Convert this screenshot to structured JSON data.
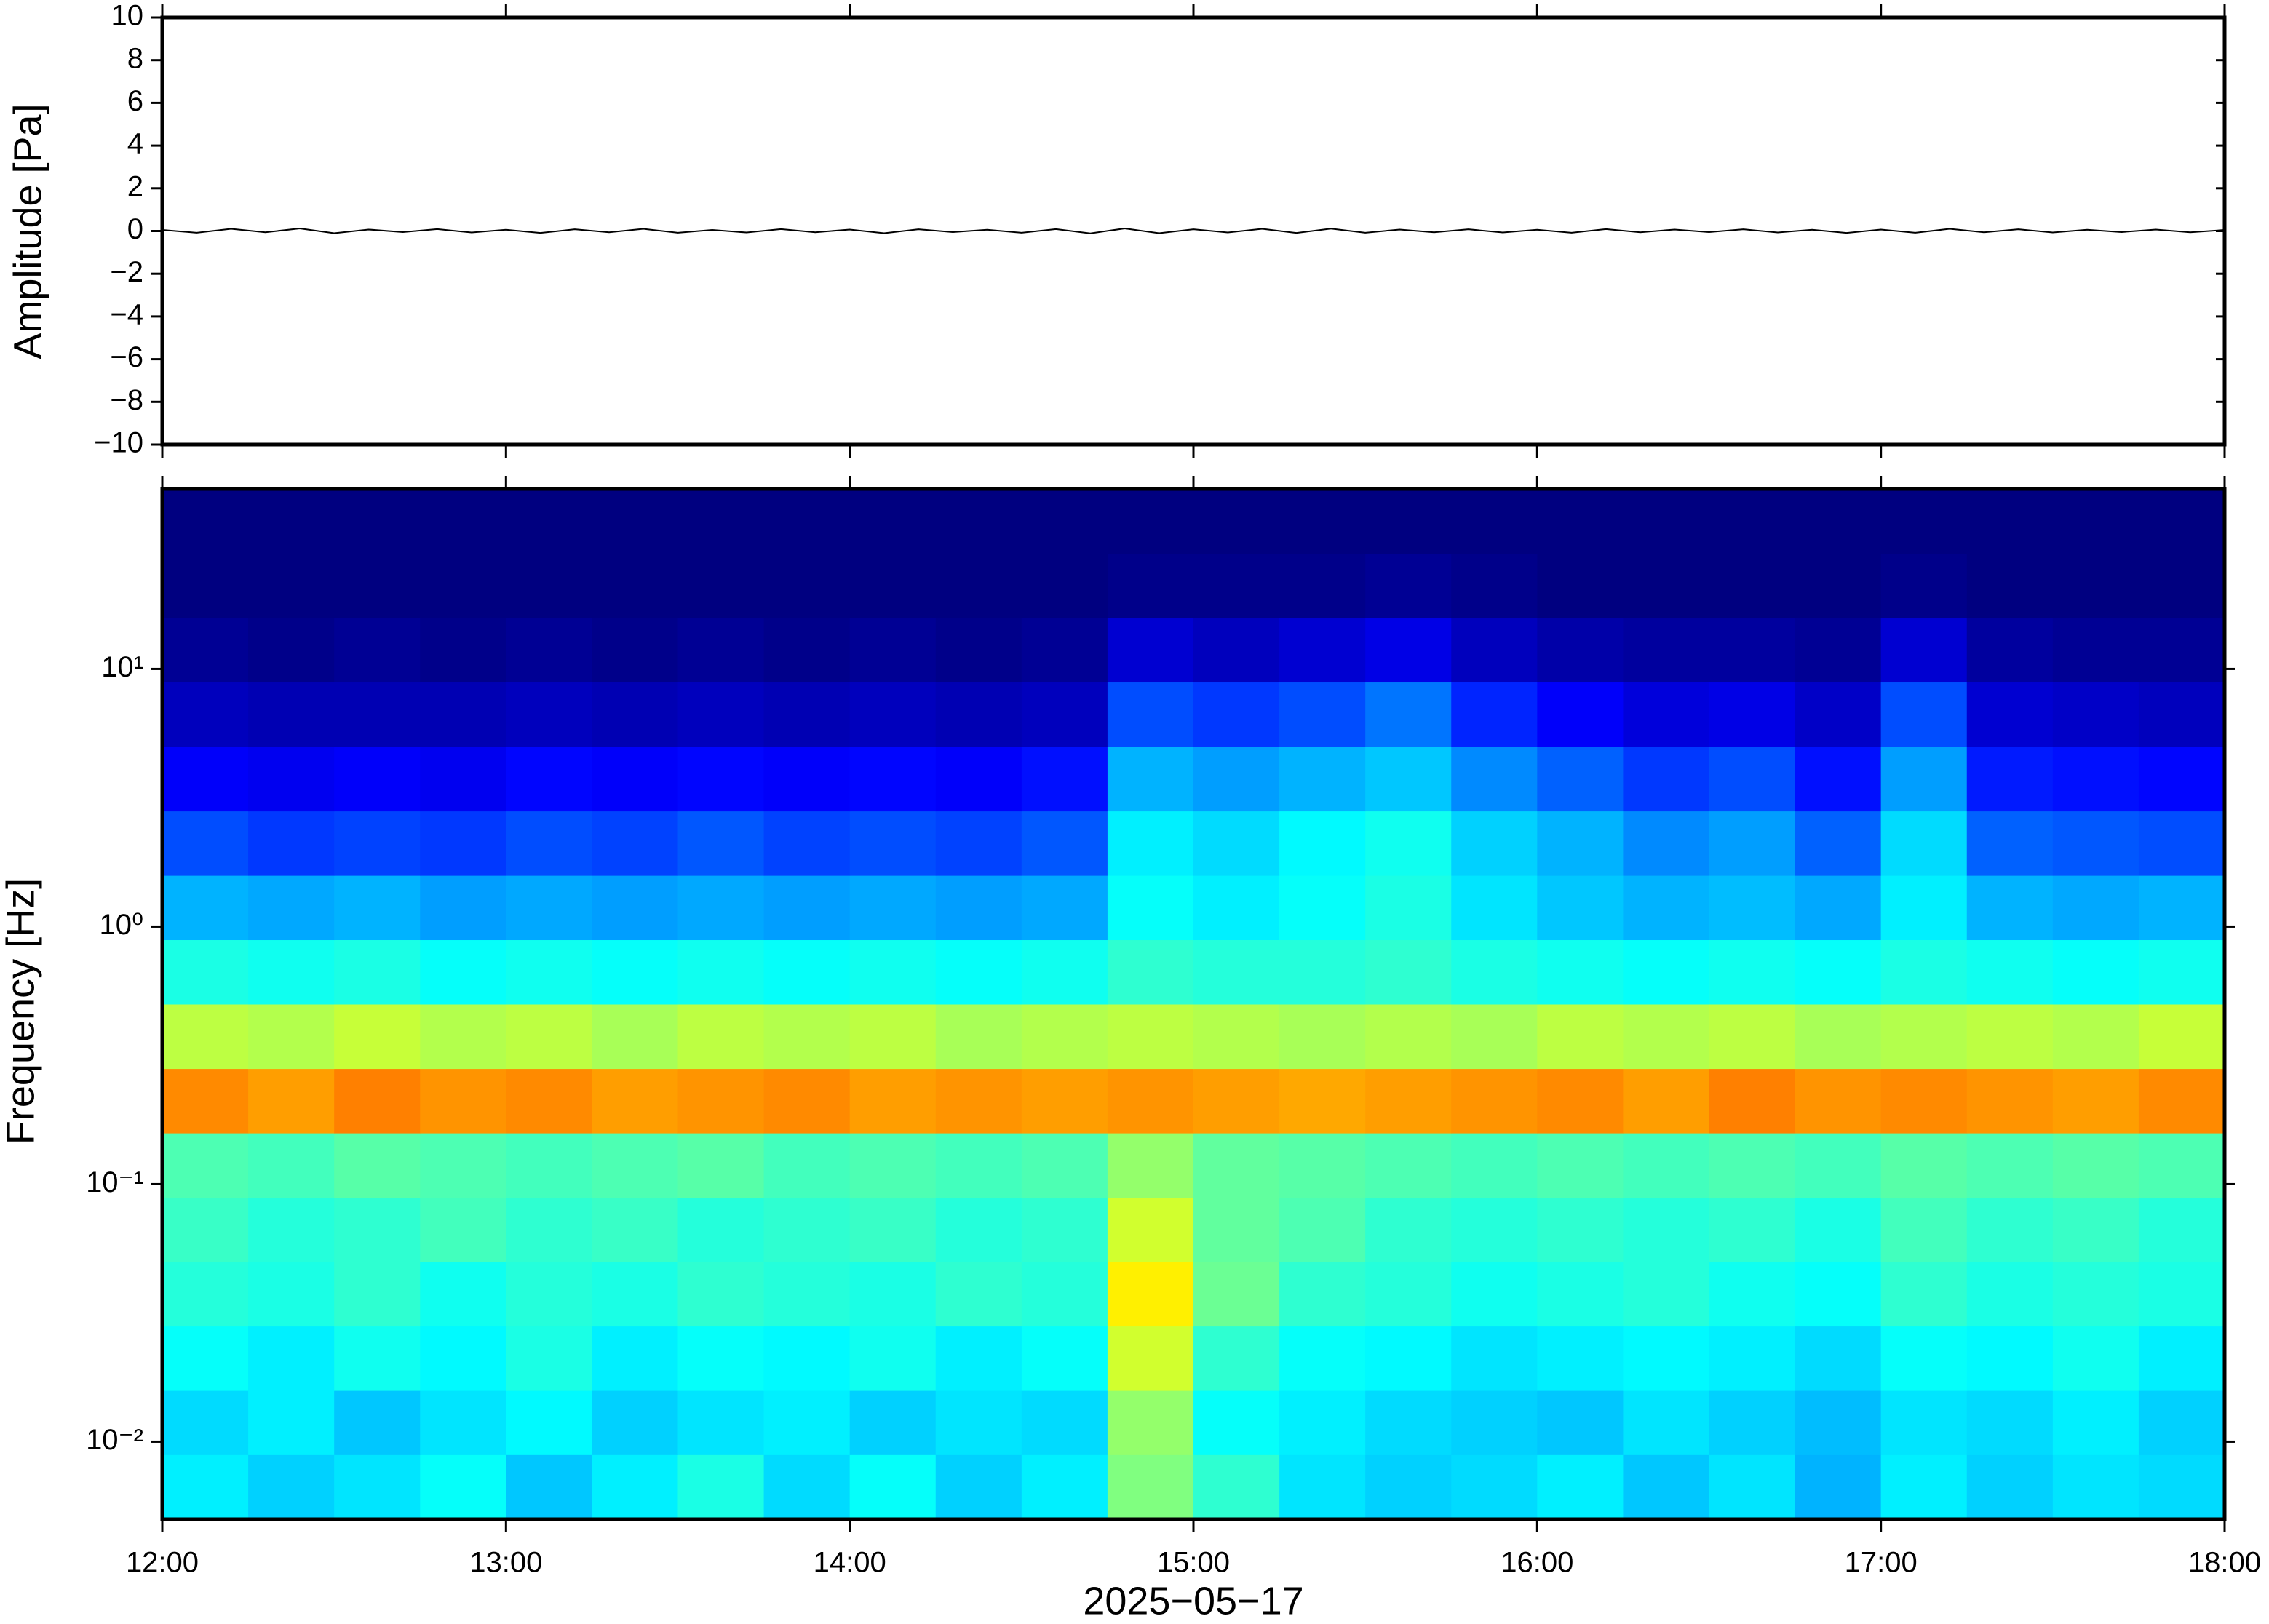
{
  "chart_data": [
    {
      "type": "line",
      "ylabel": "Amplitude [Pa]",
      "color": "#000000",
      "x": [
        12,
        12.1,
        12.2,
        12.3,
        12.4,
        12.5,
        12.6,
        12.7,
        12.8,
        12.9,
        13,
        13.1,
        13.2,
        13.3,
        13.4,
        13.5,
        13.6,
        13.7,
        13.8,
        13.9,
        14,
        14.1,
        14.2,
        14.3,
        14.4,
        14.5,
        14.6,
        14.7,
        14.8,
        14.9,
        15,
        15.1,
        15.2,
        15.3,
        15.4,
        15.5,
        15.6,
        15.7,
        15.8,
        15.9,
        16,
        16.1,
        16.2,
        16.3,
        16.4,
        16.5,
        16.6,
        16.7,
        16.8,
        16.9,
        17,
        17.1,
        17.2,
        17.3,
        17.4,
        17.5,
        17.6,
        17.7,
        17.8,
        17.9,
        18
      ],
      "values": [
        0.05,
        -0.08,
        0.1,
        -0.06,
        0.12,
        -0.1,
        0.07,
        -0.05,
        0.09,
        -0.07,
        0.06,
        -0.09,
        0.08,
        -0.06,
        0.1,
        -0.08,
        0.05,
        -0.07,
        0.09,
        -0.06,
        0.07,
        -0.1,
        0.08,
        -0.05,
        0.06,
        -0.08,
        0.09,
        -0.11,
        0.12,
        -0.1,
        0.08,
        -0.07,
        0.1,
        -0.09,
        0.11,
        -0.08,
        0.07,
        -0.06,
        0.08,
        -0.07,
        0.06,
        -0.08,
        0.09,
        -0.06,
        0.07,
        -0.05,
        0.08,
        -0.07,
        0.06,
        -0.09,
        0.07,
        -0.08,
        0.1,
        -0.06,
        0.08,
        -0.07,
        0.06,
        -0.05,
        0.07,
        -0.06,
        0.05
      ],
      "xlim": [
        12,
        18
      ],
      "ylim": [
        -10,
        10
      ],
      "yticks": [
        {
          "value": -10,
          "label": "−10"
        },
        {
          "value": -8,
          "label": "−8"
        },
        {
          "value": -6,
          "label": "−6"
        },
        {
          "value": -4,
          "label": "−4"
        },
        {
          "value": -2,
          "label": "−2"
        },
        0,
        2,
        4,
        6,
        8,
        10
      ]
    },
    {
      "type": "heatmap",
      "ylabel": "Frequency [Hz]",
      "xlabel": "2025−05−17",
      "colormap": "jet",
      "log_y": true,
      "xlim": [
        12,
        18
      ],
      "ylim": [
        0.005,
        50
      ],
      "xticks": [
        {
          "value": 12,
          "label": "12:00"
        },
        {
          "value": 13,
          "label": "13:00"
        },
        {
          "value": 14,
          "label": "14:00"
        },
        {
          "value": 15,
          "label": "15:00"
        },
        {
          "value": 16,
          "label": "16:00"
        },
        {
          "value": 17,
          "label": "17:00"
        },
        {
          "value": 18,
          "label": "18:00"
        }
      ],
      "yticks": [
        {
          "value": 0.01,
          "label": "10⁻²"
        },
        {
          "value": 0.1,
          "label": "10⁻¹"
        },
        {
          "value": 1,
          "label": "10⁰"
        },
        {
          "value": 10,
          "label": "10¹"
        }
      ],
      "xbins": [
        12,
        12.25,
        12.5,
        12.75,
        13,
        13.25,
        13.5,
        13.75,
        14,
        14.25,
        14.5,
        14.75,
        15,
        15.25,
        15.5,
        15.75,
        16,
        16.25,
        16.5,
        16.75,
        17,
        17.25,
        17.5,
        17.75,
        18
      ],
      "ybins": [
        0.005,
        0.0089,
        0.0158,
        0.0281,
        0.05,
        0.0889,
        0.158,
        0.281,
        0.5,
        0.889,
        1.58,
        2.81,
        5,
        8.89,
        15.8,
        28.1,
        50
      ],
      "z": [
        [
          0.36,
          0.33,
          0.35,
          0.38,
          0.32,
          0.36,
          0.4,
          0.34,
          0.38,
          0.33,
          0.36,
          0.5,
          0.42,
          0.35,
          0.33,
          0.34,
          0.36,
          0.32,
          0.35,
          0.3,
          0.36,
          0.33,
          0.35,
          0.34
        ],
        [
          0.34,
          0.36,
          0.32,
          0.35,
          0.37,
          0.33,
          0.35,
          0.36,
          0.33,
          0.35,
          0.34,
          0.52,
          0.38,
          0.36,
          0.34,
          0.33,
          0.32,
          0.35,
          0.33,
          0.31,
          0.35,
          0.34,
          0.36,
          0.33
        ],
        [
          0.38,
          0.36,
          0.39,
          0.37,
          0.4,
          0.36,
          0.38,
          0.37,
          0.39,
          0.36,
          0.38,
          0.58,
          0.42,
          0.38,
          0.37,
          0.35,
          0.36,
          0.37,
          0.36,
          0.34,
          0.38,
          0.37,
          0.39,
          0.36
        ],
        [
          0.41,
          0.4,
          0.42,
          0.39,
          0.41,
          0.4,
          0.42,
          0.41,
          0.4,
          0.42,
          0.41,
          0.64,
          0.48,
          0.42,
          0.41,
          0.39,
          0.4,
          0.41,
          0.39,
          0.38,
          0.42,
          0.4,
          0.41,
          0.4
        ],
        [
          0.43,
          0.41,
          0.42,
          0.44,
          0.42,
          0.43,
          0.41,
          0.42,
          0.43,
          0.41,
          0.42,
          0.58,
          0.47,
          0.45,
          0.42,
          0.41,
          0.42,
          0.41,
          0.42,
          0.4,
          0.44,
          0.42,
          0.43,
          0.41
        ],
        [
          0.45,
          0.44,
          0.46,
          0.45,
          0.44,
          0.45,
          0.46,
          0.44,
          0.45,
          0.44,
          0.45,
          0.52,
          0.47,
          0.46,
          0.45,
          0.44,
          0.45,
          0.44,
          0.45,
          0.44,
          0.46,
          0.45,
          0.46,
          0.45
        ],
        [
          0.74,
          0.72,
          0.75,
          0.73,
          0.74,
          0.72,
          0.73,
          0.74,
          0.72,
          0.73,
          0.72,
          0.73,
          0.72,
          0.71,
          0.72,
          0.73,
          0.74,
          0.72,
          0.75,
          0.73,
          0.74,
          0.73,
          0.72,
          0.74
        ],
        [
          0.56,
          0.55,
          0.57,
          0.55,
          0.56,
          0.54,
          0.56,
          0.55,
          0.56,
          0.54,
          0.55,
          0.56,
          0.55,
          0.54,
          0.55,
          0.54,
          0.56,
          0.55,
          0.56,
          0.54,
          0.55,
          0.56,
          0.55,
          0.57
        ],
        [
          0.4,
          0.39,
          0.4,
          0.38,
          0.39,
          0.38,
          0.39,
          0.38,
          0.39,
          0.38,
          0.39,
          0.42,
          0.41,
          0.41,
          0.42,
          0.4,
          0.39,
          0.38,
          0.39,
          0.38,
          0.4,
          0.39,
          0.38,
          0.39
        ],
        [
          0.3,
          0.29,
          0.3,
          0.28,
          0.29,
          0.28,
          0.29,
          0.28,
          0.29,
          0.28,
          0.29,
          0.38,
          0.36,
          0.38,
          0.4,
          0.35,
          0.32,
          0.3,
          0.31,
          0.29,
          0.36,
          0.3,
          0.29,
          0.3
        ],
        [
          0.2,
          0.18,
          0.19,
          0.18,
          0.2,
          0.19,
          0.21,
          0.19,
          0.2,
          0.19,
          0.21,
          0.36,
          0.34,
          0.37,
          0.39,
          0.33,
          0.3,
          0.26,
          0.28,
          0.22,
          0.34,
          0.22,
          0.21,
          0.2
        ],
        [
          0.12,
          0.11,
          0.12,
          0.11,
          0.13,
          0.12,
          0.13,
          0.12,
          0.13,
          0.12,
          0.14,
          0.3,
          0.28,
          0.3,
          0.32,
          0.26,
          0.22,
          0.18,
          0.2,
          0.14,
          0.28,
          0.15,
          0.14,
          0.13
        ],
        [
          0.06,
          0.05,
          0.05,
          0.05,
          0.06,
          0.05,
          0.06,
          0.05,
          0.06,
          0.05,
          0.06,
          0.2,
          0.18,
          0.2,
          0.24,
          0.16,
          0.12,
          0.09,
          0.1,
          0.07,
          0.2,
          0.08,
          0.07,
          0.06
        ],
        [
          0.02,
          0.01,
          0.02,
          0.01,
          0.02,
          0.01,
          0.02,
          0.01,
          0.02,
          0.01,
          0.02,
          0.08,
          0.06,
          0.08,
          0.1,
          0.06,
          0.04,
          0.03,
          0.03,
          0.02,
          0.08,
          0.03,
          0.02,
          0.02
        ],
        [
          0,
          0,
          0,
          0,
          0,
          0,
          0,
          0,
          0,
          0,
          0,
          0.01,
          0.01,
          0.01,
          0.02,
          0.01,
          0,
          0,
          0,
          0,
          0.01,
          0,
          0,
          0
        ],
        [
          0,
          0,
          0,
          0,
          0,
          0,
          0,
          0,
          0,
          0,
          0,
          0,
          0,
          0,
          0,
          0,
          0,
          0,
          0,
          0,
          0,
          0,
          0,
          0
        ]
      ]
    }
  ]
}
